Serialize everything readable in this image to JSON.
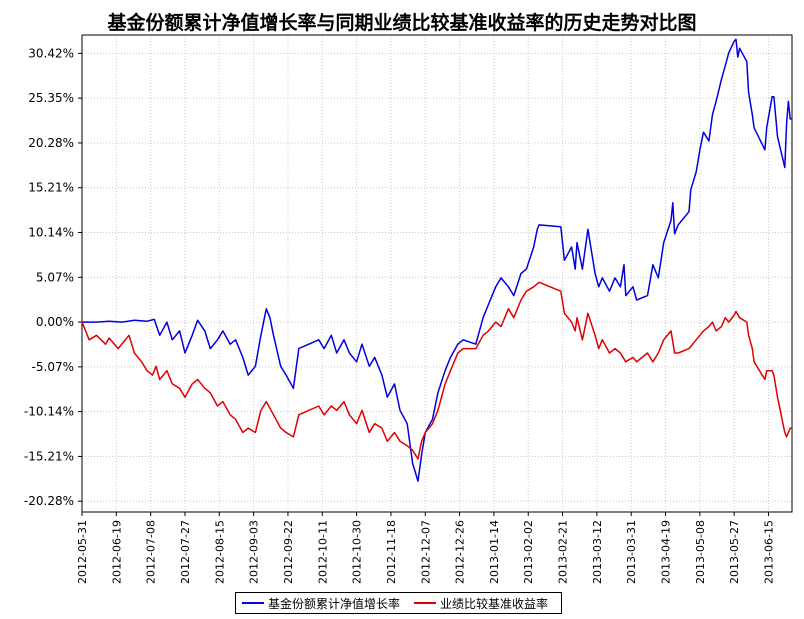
{
  "chart_data": {
    "type": "line",
    "title": "基金份额累计净值增长率与同期业绩比较基准收益率的历史走势对比图",
    "xlabel": "",
    "ylabel": "",
    "ylim": [
      -21.5,
      32.5
    ],
    "y_ticks": [
      "30.42%",
      "25.35%",
      "20.28%",
      "15.21%",
      "10.14%",
      "5.07%",
      "0.00%",
      "-5.07%",
      "-10.14%",
      "-15.21%",
      "-20.28%"
    ],
    "y_tick_values": [
      30.42,
      25.35,
      20.28,
      15.21,
      10.14,
      5.07,
      0,
      -5.07,
      -10.14,
      -15.21,
      -20.28
    ],
    "x_ticks": [
      "2012-05-31",
      "2012-06-19",
      "2012-07-08",
      "2012-07-27",
      "2012-08-15",
      "2012-09-03",
      "2012-09-22",
      "2012-10-11",
      "2012-10-30",
      "2012-11-18",
      "2012-12-07",
      "2012-12-26",
      "2013-01-14",
      "2013-02-02",
      "2013-02-21",
      "2013-03-12",
      "2013-03-31",
      "2013-04-19",
      "2013-05-08",
      "2013-05-27",
      "2013-06-15"
    ],
    "x_range": [
      "2012-05-31",
      "2013-06-28"
    ],
    "grid": true,
    "legend_position": "bottom-center",
    "series": [
      {
        "name": "基金份额累计净值增长率",
        "color": "#0000e0",
        "points": [
          [
            "2012-05-31",
            0.0
          ],
          [
            "2012-06-08",
            0.0
          ],
          [
            "2012-06-15",
            0.1
          ],
          [
            "2012-06-22",
            0.0
          ],
          [
            "2012-06-29",
            0.2
          ],
          [
            "2012-07-06",
            0.1
          ],
          [
            "2012-07-10",
            0.3
          ],
          [
            "2012-07-13",
            -1.5
          ],
          [
            "2012-07-17",
            0.0
          ],
          [
            "2012-07-20",
            -2.0
          ],
          [
            "2012-07-24",
            -1.0
          ],
          [
            "2012-07-27",
            -3.5
          ],
          [
            "2012-07-31",
            -1.5
          ],
          [
            "2012-08-03",
            0.2
          ],
          [
            "2012-08-07",
            -1.0
          ],
          [
            "2012-08-10",
            -3.0
          ],
          [
            "2012-08-14",
            -2.0
          ],
          [
            "2012-08-17",
            -1.0
          ],
          [
            "2012-08-21",
            -2.5
          ],
          [
            "2012-08-24",
            -2.0
          ],
          [
            "2012-08-28",
            -4.0
          ],
          [
            "2012-08-31",
            -6.0
          ],
          [
            "2012-09-04",
            -5.0
          ],
          [
            "2012-09-07",
            -1.5
          ],
          [
            "2012-09-10",
            1.5
          ],
          [
            "2012-09-12",
            0.5
          ],
          [
            "2012-09-14",
            -1.5
          ],
          [
            "2012-09-18",
            -5.0
          ],
          [
            "2012-09-21",
            -6.0
          ],
          [
            "2012-09-25",
            -7.5
          ],
          [
            "2012-09-28",
            -3.0
          ],
          [
            "2012-10-09",
            -2.0
          ],
          [
            "2012-10-12",
            -3.0
          ],
          [
            "2012-10-16",
            -1.5
          ],
          [
            "2012-10-19",
            -3.5
          ],
          [
            "2012-10-23",
            -2.0
          ],
          [
            "2012-10-26",
            -3.5
          ],
          [
            "2012-10-30",
            -4.5
          ],
          [
            "2012-11-02",
            -2.5
          ],
          [
            "2012-11-06",
            -5.0
          ],
          [
            "2012-11-09",
            -4.0
          ],
          [
            "2012-11-13",
            -6.0
          ],
          [
            "2012-11-16",
            -8.5
          ],
          [
            "2012-11-20",
            -7.0
          ],
          [
            "2012-11-23",
            -10.0
          ],
          [
            "2012-11-27",
            -11.5
          ],
          [
            "2012-11-30",
            -16.0
          ],
          [
            "2012-12-03",
            -18.0
          ],
          [
            "2012-12-05",
            -15.0
          ],
          [
            "2012-12-07",
            -12.5
          ],
          [
            "2012-12-11",
            -11.0
          ],
          [
            "2012-12-14",
            -8.0
          ],
          [
            "2012-12-18",
            -5.5
          ],
          [
            "2012-12-21",
            -4.0
          ],
          [
            "2012-12-25",
            -2.5
          ],
          [
            "2012-12-28",
            -2.0
          ],
          [
            "2013-01-04",
            -2.5
          ],
          [
            "2013-01-08",
            0.5
          ],
          [
            "2013-01-11",
            2.0
          ],
          [
            "2013-01-15",
            4.0
          ],
          [
            "2013-01-18",
            5.0
          ],
          [
            "2013-01-22",
            4.0
          ],
          [
            "2013-01-25",
            3.0
          ],
          [
            "2013-01-29",
            5.5
          ],
          [
            "2013-02-01",
            6.0
          ],
          [
            "2013-02-05",
            8.5
          ],
          [
            "2013-02-07",
            10.5
          ],
          [
            "2013-02-08",
            11.0
          ],
          [
            "2013-02-20",
            10.8
          ],
          [
            "2013-02-22",
            7.0
          ],
          [
            "2013-02-26",
            8.5
          ],
          [
            "2013-02-28",
            6.0
          ],
          [
            "2013-03-01",
            9.0
          ],
          [
            "2013-03-04",
            6.0
          ],
          [
            "2013-03-07",
            10.5
          ],
          [
            "2013-03-11",
            5.5
          ],
          [
            "2013-03-13",
            4.0
          ],
          [
            "2013-03-15",
            5.0
          ],
          [
            "2013-03-19",
            3.5
          ],
          [
            "2013-03-22",
            5.0
          ],
          [
            "2013-03-25",
            4.0
          ],
          [
            "2013-03-27",
            6.5
          ],
          [
            "2013-03-28",
            3.0
          ],
          [
            "2013-04-01",
            4.0
          ],
          [
            "2013-04-03",
            2.5
          ],
          [
            "2013-04-09",
            3.0
          ],
          [
            "2013-04-12",
            6.5
          ],
          [
            "2013-04-15",
            5.0
          ],
          [
            "2013-04-18",
            9.0
          ],
          [
            "2013-04-22",
            11.5
          ],
          [
            "2013-04-23",
            13.5
          ],
          [
            "2013-04-24",
            10.0
          ],
          [
            "2013-04-26",
            11.0
          ],
          [
            "2013-05-02",
            12.5
          ],
          [
            "2013-05-03",
            15.0
          ],
          [
            "2013-05-06",
            17.0
          ],
          [
            "2013-05-08",
            19.5
          ],
          [
            "2013-05-10",
            21.5
          ],
          [
            "2013-05-13",
            20.5
          ],
          [
            "2013-05-15",
            23.5
          ],
          [
            "2013-05-17",
            25.0
          ],
          [
            "2013-05-20",
            27.5
          ],
          [
            "2013-05-22",
            29.0
          ],
          [
            "2013-05-24",
            30.5
          ],
          [
            "2013-05-27",
            31.8
          ],
          [
            "2013-05-28",
            32.0
          ],
          [
            "2013-05-29",
            30.0
          ],
          [
            "2013-05-30",
            31.0
          ],
          [
            "2013-06-03",
            29.5
          ],
          [
            "2013-06-04",
            26.0
          ],
          [
            "2013-06-06",
            23.5
          ],
          [
            "2013-06-07",
            22.0
          ],
          [
            "2013-06-13",
            19.5
          ],
          [
            "2013-06-14",
            22.0
          ],
          [
            "2013-06-17",
            25.5
          ],
          [
            "2013-06-18",
            25.5
          ],
          [
            "2013-06-20",
            21.0
          ],
          [
            "2013-06-24",
            17.5
          ],
          [
            "2013-06-25",
            22.5
          ],
          [
            "2013-06-26",
            25.0
          ],
          [
            "2013-06-27",
            23.0
          ],
          [
            "2013-06-28",
            23.0
          ]
        ]
      },
      {
        "name": "业绩比较基准收益率",
        "color": "#e00000",
        "points": [
          [
            "2012-05-31",
            0.0
          ],
          [
            "2012-06-04",
            -2.0
          ],
          [
            "2012-06-08",
            -1.5
          ],
          [
            "2012-06-13",
            -2.5
          ],
          [
            "2012-06-15",
            -1.8
          ],
          [
            "2012-06-20",
            -3.0
          ],
          [
            "2012-06-26",
            -1.5
          ],
          [
            "2012-06-29",
            -3.5
          ],
          [
            "2012-07-03",
            -4.5
          ],
          [
            "2012-07-06",
            -5.5
          ],
          [
            "2012-07-09",
            -6.0
          ],
          [
            "2012-07-11",
            -5.0
          ],
          [
            "2012-07-13",
            -6.5
          ],
          [
            "2012-07-17",
            -5.5
          ],
          [
            "2012-07-20",
            -7.0
          ],
          [
            "2012-07-24",
            -7.5
          ],
          [
            "2012-07-27",
            -8.5
          ],
          [
            "2012-07-31",
            -7.0
          ],
          [
            "2012-08-03",
            -6.5
          ],
          [
            "2012-08-07",
            -7.5
          ],
          [
            "2012-08-10",
            -8.0
          ],
          [
            "2012-08-14",
            -9.5
          ],
          [
            "2012-08-17",
            -9.0
          ],
          [
            "2012-08-21",
            -10.5
          ],
          [
            "2012-08-24",
            -11.0
          ],
          [
            "2012-08-28",
            -12.5
          ],
          [
            "2012-08-31",
            -12.0
          ],
          [
            "2012-09-04",
            -12.5
          ],
          [
            "2012-09-07",
            -10.0
          ],
          [
            "2012-09-10",
            -9.0
          ],
          [
            "2012-09-14",
            -10.5
          ],
          [
            "2012-09-18",
            -12.0
          ],
          [
            "2012-09-21",
            -12.5
          ],
          [
            "2012-09-25",
            -13.0
          ],
          [
            "2012-09-28",
            -10.5
          ],
          [
            "2012-10-09",
            -9.5
          ],
          [
            "2012-10-12",
            -10.5
          ],
          [
            "2012-10-16",
            -9.5
          ],
          [
            "2012-10-19",
            -10.0
          ],
          [
            "2012-10-23",
            -9.0
          ],
          [
            "2012-10-26",
            -10.5
          ],
          [
            "2012-10-30",
            -11.5
          ],
          [
            "2012-11-02",
            -10.0
          ],
          [
            "2012-11-06",
            -12.5
          ],
          [
            "2012-11-09",
            -11.5
          ],
          [
            "2012-11-13",
            -12.0
          ],
          [
            "2012-11-16",
            -13.5
          ],
          [
            "2012-11-20",
            -12.5
          ],
          [
            "2012-11-23",
            -13.5
          ],
          [
            "2012-11-27",
            -14.0
          ],
          [
            "2012-11-30",
            -14.5
          ],
          [
            "2012-12-03",
            -15.5
          ],
          [
            "2012-12-05",
            -13.5
          ],
          [
            "2012-12-07",
            -12.5
          ],
          [
            "2012-12-11",
            -11.5
          ],
          [
            "2012-12-14",
            -10.0
          ],
          [
            "2012-12-18",
            -7.0
          ],
          [
            "2012-12-21",
            -5.5
          ],
          [
            "2012-12-25",
            -3.5
          ],
          [
            "2012-12-28",
            -3.0
          ],
          [
            "2013-01-04",
            -3.0
          ],
          [
            "2013-01-08",
            -1.5
          ],
          [
            "2013-01-11",
            -1.0
          ],
          [
            "2013-01-15",
            0.0
          ],
          [
            "2013-01-18",
            -0.5
          ],
          [
            "2013-01-22",
            1.5
          ],
          [
            "2013-01-25",
            0.5
          ],
          [
            "2013-01-29",
            2.5
          ],
          [
            "2013-02-01",
            3.5
          ],
          [
            "2013-02-05",
            4.0
          ],
          [
            "2013-02-08",
            4.5
          ],
          [
            "2013-02-20",
            3.5
          ],
          [
            "2013-02-22",
            1.0
          ],
          [
            "2013-02-26",
            0.0
          ],
          [
            "2013-02-28",
            -1.0
          ],
          [
            "2013-03-01",
            0.5
          ],
          [
            "2013-03-04",
            -2.0
          ],
          [
            "2013-03-07",
            1.0
          ],
          [
            "2013-03-11",
            -1.5
          ],
          [
            "2013-03-13",
            -3.0
          ],
          [
            "2013-03-15",
            -2.0
          ],
          [
            "2013-03-19",
            -3.5
          ],
          [
            "2013-03-22",
            -3.0
          ],
          [
            "2013-03-25",
            -3.5
          ],
          [
            "2013-03-28",
            -4.5
          ],
          [
            "2013-04-01",
            -4.0
          ],
          [
            "2013-04-03",
            -4.5
          ],
          [
            "2013-04-09",
            -3.5
          ],
          [
            "2013-04-12",
            -4.5
          ],
          [
            "2013-04-15",
            -3.5
          ],
          [
            "2013-04-18",
            -2.0
          ],
          [
            "2013-04-22",
            -1.0
          ],
          [
            "2013-04-24",
            -3.5
          ],
          [
            "2013-04-26",
            -3.5
          ],
          [
            "2013-05-02",
            -3.0
          ],
          [
            "2013-05-06",
            -2.0
          ],
          [
            "2013-05-08",
            -1.5
          ],
          [
            "2013-05-10",
            -1.0
          ],
          [
            "2013-05-13",
            -0.5
          ],
          [
            "2013-05-15",
            0.0
          ],
          [
            "2013-05-17",
            -1.0
          ],
          [
            "2013-05-20",
            -0.5
          ],
          [
            "2013-05-22",
            0.5
          ],
          [
            "2013-05-24",
            0.0
          ],
          [
            "2013-05-27",
            0.8
          ],
          [
            "2013-05-28",
            1.2
          ],
          [
            "2013-05-30",
            0.5
          ],
          [
            "2013-06-03",
            0.0
          ],
          [
            "2013-06-04",
            -1.5
          ],
          [
            "2013-06-06",
            -3.0
          ],
          [
            "2013-06-07",
            -4.5
          ],
          [
            "2013-06-13",
            -6.5
          ],
          [
            "2013-06-14",
            -5.5
          ],
          [
            "2013-06-17",
            -5.5
          ],
          [
            "2013-06-18",
            -6.0
          ],
          [
            "2013-06-20",
            -8.5
          ],
          [
            "2013-06-24",
            -12.5
          ],
          [
            "2013-06-25",
            -13.0
          ],
          [
            "2013-06-26",
            -12.5
          ],
          [
            "2013-06-27",
            -12.0
          ],
          [
            "2013-06-28",
            -12.0
          ]
        ]
      }
    ]
  }
}
